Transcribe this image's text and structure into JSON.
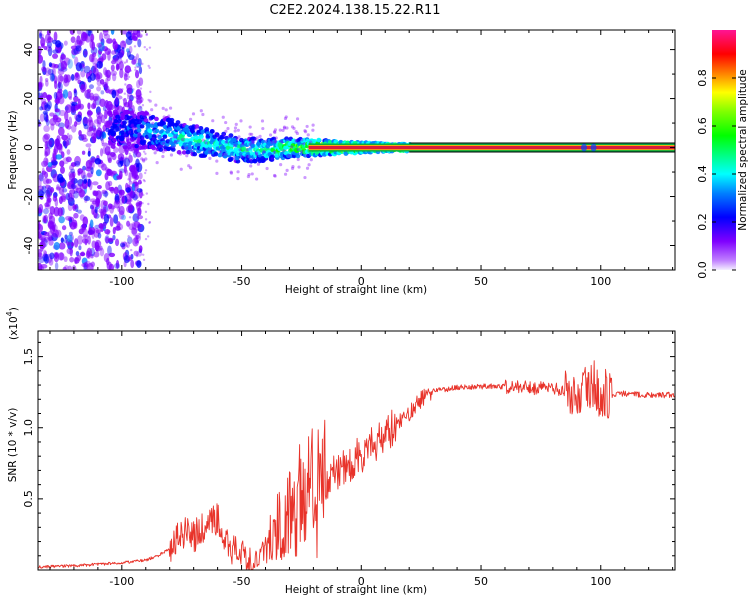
{
  "title": "C2E2.2024.138.15.22.R11",
  "colors": {
    "snr_line": "#e8332a",
    "signal_core": "#d91c3a",
    "background": "#ffffff",
    "colormap": [
      "#ff00ff",
      "#7f00ff",
      "#0000ff",
      "#0080ff",
      "#00ffff",
      "#00ff80",
      "#00ff00",
      "#80ff00",
      "#ffff00",
      "#ff8000",
      "#ff0000",
      "#ff0080"
    ]
  },
  "chart_data": [
    {
      "type": "heatmap",
      "xlabel": "Height of straight line (km)",
      "ylabel": "Frequency (Hz)",
      "xlim": [
        -135,
        131
      ],
      "ylim": [
        -50,
        48
      ],
      "xticks": [
        -100,
        -50,
        0,
        50,
        100
      ],
      "yticks": [
        -40,
        -20,
        0,
        20,
        40
      ],
      "xtick_labels": [
        "-100",
        "-50",
        "0",
        "50",
        "100"
      ],
      "ytick_labels": [
        "-40",
        "-20",
        "0",
        "20",
        "40"
      ],
      "colorbar": {
        "label": "Normalized spectral amplitude",
        "range": [
          0,
          1
        ],
        "ticks": [
          0.0,
          0.2,
          0.4,
          0.6,
          0.8
        ],
        "tick_labels": [
          "0.0",
          "0.2",
          "0.4",
          "0.6",
          "0.8"
        ]
      },
      "signal_track": {
        "description_points_height_km": [
          -105,
          -90,
          -80,
          -70,
          -60,
          -50,
          -40,
          -30,
          -20,
          -10,
          0,
          10,
          20,
          50,
          100,
          131
        ],
        "frequency_hz": [
          8,
          7,
          5,
          3,
          1,
          -1,
          -1,
          0,
          0,
          0,
          0,
          0,
          0,
          0,
          0,
          0
        ],
        "amplitude": [
          0.25,
          0.35,
          0.45,
          0.5,
          0.5,
          0.55,
          0.6,
          0.7,
          0.85,
          0.9,
          0.9,
          0.95,
          1.0,
          1.0,
          1.0,
          1.0
        ]
      },
      "noise_region_km": [
        -135,
        -100
      ]
    },
    {
      "type": "line",
      "xlabel": "Height of straight line (km)",
      "ylabel": "SNR (10 * v/v)",
      "scale_label": "(x10",
      "scale_exponent": "4",
      "scale_close": ")",
      "xlim": [
        -135,
        131
      ],
      "ylim": [
        0,
        1.68
      ],
      "xticks": [
        -100,
        -50,
        0,
        50,
        100
      ],
      "yticks": [
        0.5,
        1.0,
        1.5
      ],
      "xtick_labels": [
        "-100",
        "-50",
        "0",
        "50",
        "100"
      ],
      "ytick_labels": [
        "0.5",
        "1.0",
        "1.5"
      ],
      "series": [
        {
          "name": "SNR",
          "x": [
            -135,
            -120,
            -100,
            -90,
            -85,
            -80,
            -78,
            -75,
            -70,
            -65,
            -60,
            -55,
            -50,
            -45,
            -40,
            -35,
            -30,
            -25,
            -20,
            -15,
            -10,
            -5,
            0,
            5,
            10,
            15,
            20,
            25,
            30,
            40,
            50,
            60,
            70,
            80,
            85,
            90,
            95,
            97,
            100,
            110,
            120,
            131
          ],
          "y": [
            0.02,
            0.03,
            0.05,
            0.07,
            0.1,
            0.15,
            0.2,
            0.26,
            0.22,
            0.3,
            0.35,
            0.15,
            0.09,
            0.06,
            0.15,
            0.3,
            0.4,
            0.5,
            0.55,
            0.6,
            0.7,
            0.75,
            0.82,
            0.88,
            0.95,
            1.02,
            1.1,
            1.2,
            1.26,
            1.28,
            1.29,
            1.29,
            1.28,
            1.27,
            1.26,
            1.27,
            1.25,
            1.32,
            1.24,
            1.24,
            1.23,
            1.23
          ]
        }
      ]
    }
  ]
}
